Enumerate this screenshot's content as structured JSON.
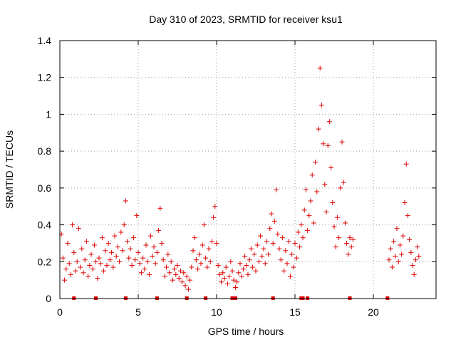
{
  "chart_data": {
    "type": "scatter",
    "title": "Day 310 of 2023, SRMTID for receiver ksu1",
    "xlabel": "GPS time / hours",
    "ylabel": "SRMTID / TECUs",
    "xlim": [
      0,
      24
    ],
    "ylim": [
      0,
      1.4
    ],
    "xticks": [
      0,
      5,
      10,
      15,
      20
    ],
    "xtick_labels": [
      "0",
      "5",
      "10",
      "15",
      "20"
    ],
    "yticks": [
      0,
      0.2,
      0.4,
      0.6,
      0.8,
      1.0,
      1.2,
      1.4
    ],
    "ytick_labels": [
      "0",
      "0.2",
      "0.4",
      "0.6",
      "0.8",
      "1",
      "1.2",
      "1.4"
    ],
    "grid": true,
    "marker": "+",
    "marker_color": "#dd0000",
    "series": [
      {
        "name": "SRMTID",
        "points": [
          [
            0.1,
            0.35
          ],
          [
            0.2,
            0.22
          ],
          [
            0.3,
            0.1
          ],
          [
            0.4,
            0.16
          ],
          [
            0.5,
            0.3
          ],
          [
            0.6,
            0.19
          ],
          [
            0.7,
            0.13
          ],
          [
            0.8,
            0.4
          ],
          [
            0.9,
            0.25
          ],
          [
            1.0,
            0.15
          ],
          [
            1.1,
            0.2
          ],
          [
            1.2,
            0.38
          ],
          [
            1.3,
            0.17
          ],
          [
            1.4,
            0.27
          ],
          [
            1.5,
            0.14
          ],
          [
            1.6,
            0.21
          ],
          [
            1.7,
            0.31
          ],
          [
            1.8,
            0.12
          ],
          [
            1.9,
            0.18
          ],
          [
            2.0,
            0.24
          ],
          [
            2.1,
            0.16
          ],
          [
            2.2,
            0.29
          ],
          [
            2.3,
            0.2
          ],
          [
            2.4,
            0.11
          ],
          [
            2.5,
            0.22
          ],
          [
            2.6,
            0.19
          ],
          [
            2.7,
            0.33
          ],
          [
            2.8,
            0.15
          ],
          [
            2.9,
            0.26
          ],
          [
            3.0,
            0.18
          ],
          [
            3.1,
            0.3
          ],
          [
            3.2,
            0.21
          ],
          [
            3.3,
            0.25
          ],
          [
            3.4,
            0.17
          ],
          [
            3.5,
            0.34
          ],
          [
            3.6,
            0.23
          ],
          [
            3.7,
            0.28
          ],
          [
            3.8,
            0.2
          ],
          [
            3.9,
            0.36
          ],
          [
            4.0,
            0.26
          ],
          [
            4.1,
            0.4
          ],
          [
            4.2,
            0.53
          ],
          [
            4.3,
            0.31
          ],
          [
            4.4,
            0.22
          ],
          [
            4.5,
            0.27
          ],
          [
            4.6,
            0.18
          ],
          [
            4.7,
            0.33
          ],
          [
            4.8,
            0.21
          ],
          [
            4.9,
            0.45
          ],
          [
            5.0,
            0.25
          ],
          [
            5.1,
            0.19
          ],
          [
            5.2,
            0.14
          ],
          [
            5.3,
            0.22
          ],
          [
            5.4,
            0.16
          ],
          [
            5.5,
            0.29
          ],
          [
            5.6,
            0.2
          ],
          [
            5.7,
            0.13
          ],
          [
            5.8,
            0.34
          ],
          [
            5.9,
            0.23
          ],
          [
            6.0,
            0.28
          ],
          [
            6.1,
            0.19
          ],
          [
            6.2,
            0.25
          ],
          [
            6.3,
            0.37
          ],
          [
            6.4,
            0.49
          ],
          [
            6.5,
            0.3
          ],
          [
            6.6,
            0.21
          ],
          [
            6.7,
            0.12
          ],
          [
            6.8,
            0.17
          ],
          [
            6.9,
            0.24
          ],
          [
            7.0,
            0.14
          ],
          [
            7.1,
            0.2
          ],
          [
            7.2,
            0.1
          ],
          [
            7.3,
            0.16
          ],
          [
            7.4,
            0.13
          ],
          [
            7.5,
            0.18
          ],
          [
            7.6,
            0.11
          ],
          [
            7.7,
            0.15
          ],
          [
            7.8,
            0.09
          ],
          [
            7.9,
            0.14
          ],
          [
            8.0,
            0.07
          ],
          [
            8.1,
            0.12
          ],
          [
            8.2,
            0.05
          ],
          [
            8.3,
            0.1
          ],
          [
            8.4,
            0.17
          ],
          [
            8.5,
            0.26
          ],
          [
            8.6,
            0.33
          ],
          [
            8.7,
            0.21
          ],
          [
            8.8,
            0.16
          ],
          [
            8.9,
            0.24
          ],
          [
            9.0,
            0.19
          ],
          [
            9.1,
            0.29
          ],
          [
            9.2,
            0.4
          ],
          [
            9.3,
            0.22
          ],
          [
            9.4,
            0.17
          ],
          [
            9.5,
            0.27
          ],
          [
            9.6,
            0.2
          ],
          [
            9.7,
            0.31
          ],
          [
            9.8,
            0.44
          ],
          [
            9.9,
            0.5
          ],
          [
            10.0,
            0.3
          ],
          [
            10.1,
            0.18
          ],
          [
            10.2,
            0.13
          ],
          [
            10.3,
            0.09
          ],
          [
            10.4,
            0.14
          ],
          [
            10.5,
            0.11
          ],
          [
            10.6,
            0.17
          ],
          [
            10.7,
            0.08
          ],
          [
            10.8,
            0.12
          ],
          [
            10.9,
            0.2
          ],
          [
            11.0,
            0.15
          ],
          [
            11.1,
            0.1
          ],
          [
            11.2,
            0.06
          ],
          [
            11.3,
            0.09
          ],
          [
            11.4,
            0.14
          ],
          [
            11.5,
            0.19
          ],
          [
            11.6,
            0.12
          ],
          [
            11.7,
            0.16
          ],
          [
            11.8,
            0.23
          ],
          [
            11.9,
            0.18
          ],
          [
            12.0,
            0.13
          ],
          [
            12.1,
            0.21
          ],
          [
            12.2,
            0.27
          ],
          [
            12.3,
            0.17
          ],
          [
            12.4,
            0.24
          ],
          [
            12.5,
            0.15
          ],
          [
            12.6,
            0.29
          ],
          [
            12.7,
            0.2
          ],
          [
            12.8,
            0.34
          ],
          [
            12.9,
            0.23
          ],
          [
            13.0,
            0.27
          ],
          [
            13.1,
            0.19
          ],
          [
            13.2,
            0.31
          ],
          [
            13.3,
            0.24
          ],
          [
            13.4,
            0.38
          ],
          [
            13.5,
            0.46
          ],
          [
            13.6,
            0.3
          ],
          [
            13.7,
            0.42
          ],
          [
            13.8,
            0.59
          ],
          [
            13.9,
            0.35
          ],
          [
            14.0,
            0.27
          ],
          [
            14.1,
            0.21
          ],
          [
            14.2,
            0.33
          ],
          [
            14.3,
            0.15
          ],
          [
            14.4,
            0.26
          ],
          [
            14.5,
            0.19
          ],
          [
            14.6,
            0.31
          ],
          [
            14.7,
            0.12
          ],
          [
            14.8,
            0.24
          ],
          [
            14.9,
            0.17
          ],
          [
            15.0,
            0.3
          ],
          [
            15.1,
            0.22
          ],
          [
            15.2,
            0.36
          ],
          [
            15.3,
            0.28
          ],
          [
            15.4,
            0.4
          ],
          [
            15.5,
            0.33
          ],
          [
            15.6,
            0.48
          ],
          [
            15.7,
            0.59
          ],
          [
            15.8,
            0.37
          ],
          [
            15.9,
            0.45
          ],
          [
            16.0,
            0.53
          ],
          [
            16.1,
            0.67
          ],
          [
            16.2,
            0.41
          ],
          [
            16.3,
            0.74
          ],
          [
            16.4,
            0.58
          ],
          [
            16.5,
            0.92
          ],
          [
            16.6,
            1.25
          ],
          [
            16.7,
            1.05
          ],
          [
            16.8,
            0.84
          ],
          [
            16.9,
            0.62
          ],
          [
            17.0,
            0.47
          ],
          [
            17.1,
            0.83
          ],
          [
            17.2,
            0.96
          ],
          [
            17.3,
            0.71
          ],
          [
            17.4,
            0.52
          ],
          [
            17.5,
            0.39
          ],
          [
            17.6,
            0.28
          ],
          [
            17.7,
            0.44
          ],
          [
            17.8,
            0.33
          ],
          [
            17.9,
            0.6
          ],
          [
            18.0,
            0.85
          ],
          [
            18.1,
            0.63
          ],
          [
            18.2,
            0.41
          ],
          [
            18.3,
            0.3
          ],
          [
            18.4,
            0.24
          ],
          [
            18.5,
            0.33
          ],
          [
            18.6,
            0.28
          ],
          [
            18.7,
            0.32
          ],
          [
            21.0,
            0.21
          ],
          [
            21.1,
            0.27
          ],
          [
            21.2,
            0.17
          ],
          [
            21.3,
            0.31
          ],
          [
            21.4,
            0.23
          ],
          [
            21.5,
            0.38
          ],
          [
            21.6,
            0.2
          ],
          [
            21.7,
            0.29
          ],
          [
            21.8,
            0.24
          ],
          [
            21.9,
            0.34
          ],
          [
            22.0,
            0.52
          ],
          [
            22.1,
            0.73
          ],
          [
            22.2,
            0.45
          ],
          [
            22.3,
            0.32
          ],
          [
            22.4,
            0.25
          ],
          [
            22.5,
            0.18
          ],
          [
            22.6,
            0.13
          ],
          [
            22.7,
            0.21
          ],
          [
            22.8,
            0.28
          ],
          [
            22.9,
            0.23
          ]
        ]
      }
    ],
    "flags": [
      0.9,
      2.3,
      4.2,
      6.2,
      8.1,
      9.3,
      11.0,
      11.2,
      13.6,
      15.4,
      15.5,
      15.8,
      18.5,
      20.9
    ]
  }
}
